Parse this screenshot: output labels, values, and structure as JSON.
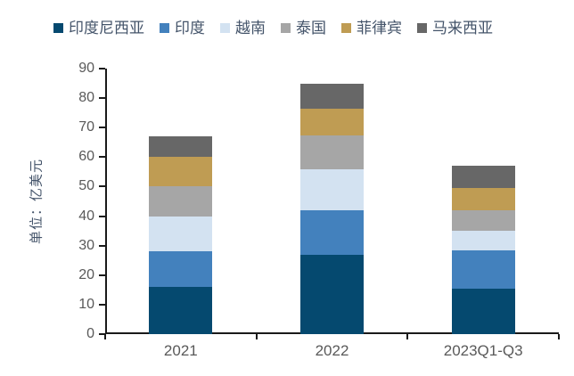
{
  "chart_data": {
    "type": "bar",
    "stacked": true,
    "stacking": "bottom-to-top",
    "title": "",
    "ylabel": "单位：亿美元",
    "xlabel": "",
    "ylim": [
      0,
      90
    ],
    "yticks": [
      0,
      10,
      20,
      30,
      40,
      50,
      60,
      70,
      80,
      90
    ],
    "grid": false,
    "legend_position": "top",
    "categories": [
      "2021",
      "2022",
      "2023Q1-Q3"
    ],
    "series": [
      {
        "name": "印度尼西亚",
        "color": "#05496F",
        "values": [
          16,
          27,
          15.5
        ]
      },
      {
        "name": "印度",
        "color": "#4381BD",
        "values": [
          12,
          15,
          13
        ]
      },
      {
        "name": "越南",
        "color": "#D3E2F1",
        "values": [
          12,
          14,
          6.5
        ]
      },
      {
        "name": "泰国",
        "color": "#A6A6A6",
        "values": [
          10,
          11.5,
          7
        ]
      },
      {
        "name": "菲律宾",
        "color": "#BF9C53",
        "values": [
          10,
          9,
          7.5
        ]
      },
      {
        "name": "马来西亚",
        "color": "#676767",
        "values": [
          7,
          8.5,
          7.5
        ]
      }
    ],
    "totals": [
      67,
      85,
      57
    ]
  },
  "colors": {
    "axis": "#1a1a1a",
    "tick_label": "#595959",
    "legend_text": "#44546A",
    "background": "#ffffff"
  }
}
